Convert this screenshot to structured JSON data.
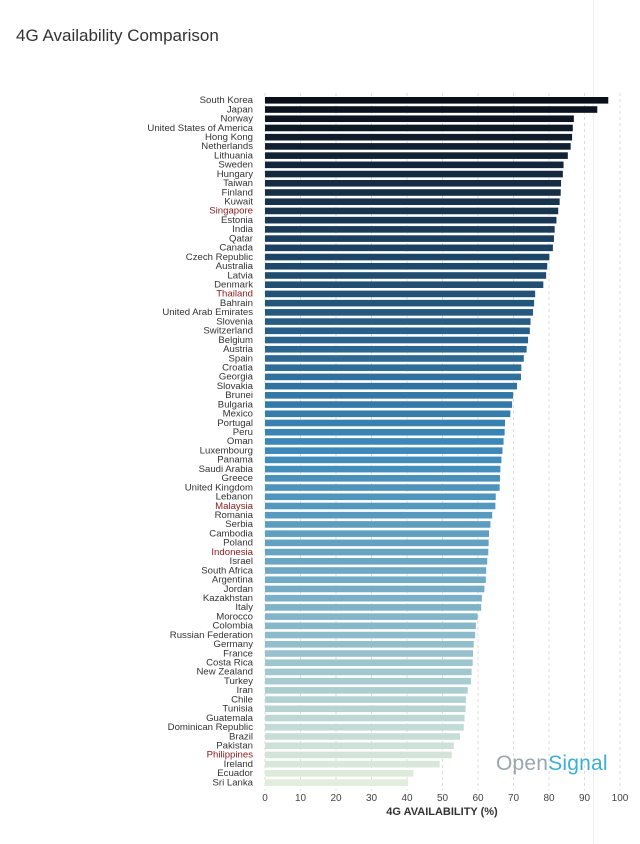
{
  "title": "4G Availability Comparison",
  "watermark": {
    "part1": "Open",
    "part2": "Signal"
  },
  "chart_data": {
    "type": "bar",
    "orientation": "horizontal",
    "title": "4G Availability Comparison",
    "xlabel": "4G AVAILABILITY (%)",
    "ylabel": "",
    "xlim": [
      0,
      100
    ],
    "xticks": [
      0,
      10,
      20,
      30,
      40,
      50,
      60,
      70,
      80,
      90,
      100
    ],
    "grid": "vertical dashed",
    "highlight_color": "#8b1a1a",
    "label_color": "#333333",
    "color_scale": [
      "#0b0f1a",
      "#1f4a6e",
      "#3a87b8",
      "#7fb3c8",
      "#e2eedc"
    ],
    "categories": [
      "South Korea",
      "Japan",
      "Norway",
      "United States of America",
      "Hong Kong",
      "Netherlands",
      "Lithuania",
      "Sweden",
      "Hungary",
      "Taiwan",
      "Finland",
      "Kuwait",
      "Singapore",
      "Estonia",
      "India",
      "Qatar",
      "Canada",
      "Czech Republic",
      "Australia",
      "Latvia",
      "Denmark",
      "Thailand",
      "Bahrain",
      "United Arab Emirates",
      "Slovenia",
      "Switzerland",
      "Belgium",
      "Austria",
      "Spain",
      "Croatia",
      "Georgia",
      "Slovakia",
      "Brunei",
      "Bulgaria",
      "Mexico",
      "Portugal",
      "Peru",
      "Oman",
      "Luxembourg",
      "Panama",
      "Saudi Arabia",
      "Greece",
      "United Kingdom",
      "Lebanon",
      "Malaysia",
      "Romania",
      "Serbia",
      "Cambodia",
      "Poland",
      "Indonesia",
      "Israel",
      "South Africa",
      "Argentina",
      "Jordan",
      "Kazakhstan",
      "Italy",
      "Morocco",
      "Colombia",
      "Russian Federation",
      "Germany",
      "France",
      "Costa Rica",
      "New Zealand",
      "Turkey",
      "Iran",
      "Chile",
      "Tunisia",
      "Guatemala",
      "Dominican Republic",
      "Brazil",
      "Pakistan",
      "Philippines",
      "Ireland",
      "Ecuador",
      "Sri Lanka"
    ],
    "values": [
      96.7,
      93.6,
      87.0,
      86.7,
      86.5,
      86.1,
      85.3,
      84.1,
      83.9,
      83.4,
      83.3,
      83.0,
      82.6,
      82.1,
      81.6,
      81.4,
      81.1,
      80.1,
      79.5,
      79.2,
      78.4,
      76.1,
      75.8,
      75.5,
      74.8,
      74.6,
      74.1,
      73.7,
      72.9,
      72.2,
      72.1,
      71.0,
      69.9,
      69.6,
      69.1,
      67.6,
      67.5,
      67.2,
      66.9,
      66.6,
      66.3,
      66.2,
      66.1,
      65.0,
      64.9,
      64.0,
      63.5,
      63.1,
      63.0,
      62.9,
      62.6,
      62.3,
      62.2,
      61.8,
      61.1,
      60.9,
      59.9,
      59.4,
      59.2,
      58.8,
      58.6,
      58.5,
      58.2,
      58.0,
      57.1,
      56.6,
      56.5,
      56.2,
      56.0,
      54.9,
      53.2,
      52.6,
      49.2,
      41.8,
      40.3
    ],
    "highlighted": [
      "Singapore",
      "Thailand",
      "Malaysia",
      "Indonesia",
      "Philippines"
    ]
  }
}
